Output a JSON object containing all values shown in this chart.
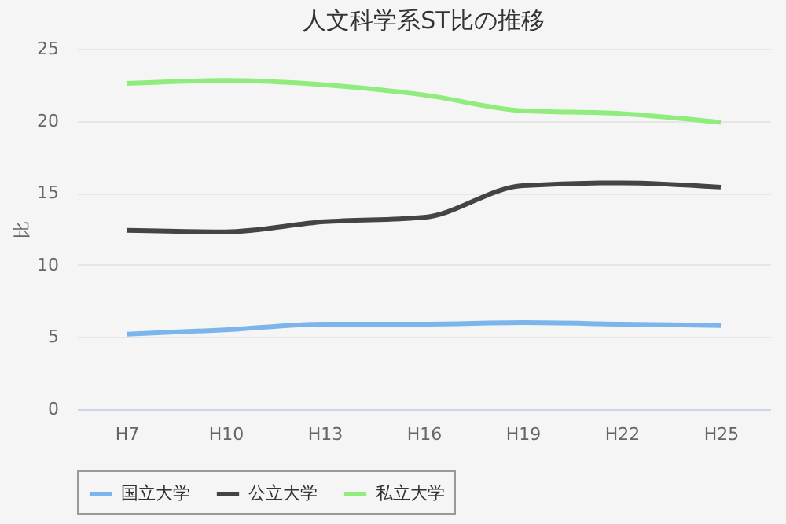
{
  "chart_data": {
    "type": "line",
    "title": "人文科学系ST比の推移",
    "ylabel": "比",
    "categories": [
      "H7",
      "H10",
      "H13",
      "H16",
      "H19",
      "H22",
      "H25"
    ],
    "series": [
      {
        "name": "国立大学",
        "color": "#7cb5ec",
        "values": [
          5.2,
          5.5,
          5.9,
          5.9,
          6.0,
          5.9,
          5.8
        ]
      },
      {
        "name": "公立大学",
        "color": "#434348",
        "values": [
          12.4,
          12.3,
          13.0,
          13.3,
          15.5,
          15.7,
          15.4
        ]
      },
      {
        "name": "私立大学",
        "color": "#90ed7d",
        "values": [
          22.6,
          22.8,
          22.5,
          21.8,
          20.7,
          20.5,
          19.9
        ]
      }
    ],
    "ylim": [
      0,
      25
    ],
    "yticks": [
      0,
      5,
      10,
      15,
      20,
      25
    ],
    "grid": "y",
    "legend": "bottom",
    "marker": "none",
    "line_style": "solid"
  }
}
